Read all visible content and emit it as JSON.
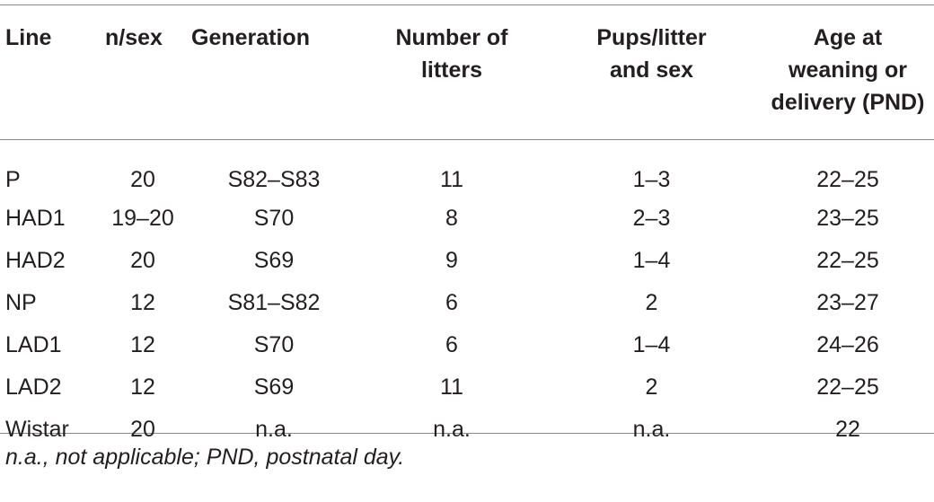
{
  "table": {
    "headers": [
      [
        "Line"
      ],
      [
        "n/sex"
      ],
      [
        "Generation"
      ],
      [
        "Number of",
        "litters"
      ],
      [
        "Pups/litter",
        "and sex"
      ],
      [
        "Age at",
        "weaning or",
        "delivery (PND)"
      ]
    ],
    "rows": [
      [
        "P",
        "20",
        "S82–S83",
        "11",
        "1–3",
        "22–25"
      ],
      [
        "HAD1",
        "19–20",
        "S70",
        "8",
        "2–3",
        "23–25"
      ],
      [
        "HAD2",
        "20",
        "S69",
        "9",
        "1–4",
        "22–25"
      ],
      [
        "NP",
        "12",
        "S81–S82",
        "6",
        "2",
        "23–27"
      ],
      [
        "LAD1",
        "12",
        "S70",
        "6",
        "1–4",
        "24–26"
      ],
      [
        "LAD2",
        "12",
        "S69",
        "11",
        "2",
        "22–25"
      ],
      [
        "Wistar",
        "20",
        "n.a.",
        "n.a.",
        "n.a.",
        "22"
      ]
    ]
  },
  "footnote": "n.a., not applicable; PND, postnatal day."
}
